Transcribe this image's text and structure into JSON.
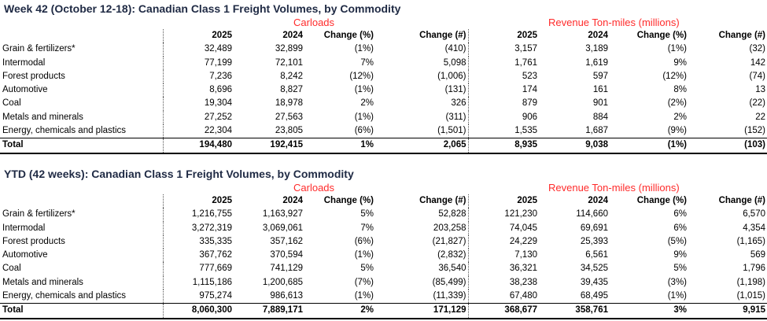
{
  "weekly": {
    "title": "Week 42 (October 12-18): Canadian Class 1 Freight Volumes, by Commodity",
    "carloads_label": "Carloads",
    "revenue_label": "Revenue Ton-miles (millions)",
    "headers": [
      "2025",
      "2024",
      "Change (%)",
      "Change (#)",
      "2025",
      "2024",
      "Change (%)",
      "Change (#)"
    ],
    "rows": [
      {
        "label": "Grain & fertilizers*",
        "values": [
          "32,489",
          "32,899",
          "(1%)",
          "(410)",
          "3,157",
          "3,189",
          "(1%)",
          "(32)"
        ]
      },
      {
        "label": "Intermodal",
        "values": [
          "77,199",
          "72,101",
          "7%",
          "5,098",
          "1,761",
          "1,619",
          "9%",
          "142"
        ]
      },
      {
        "label": "Forest products",
        "values": [
          "7,236",
          "8,242",
          "(12%)",
          "(1,006)",
          "523",
          "597",
          "(12%)",
          "(74)"
        ]
      },
      {
        "label": "Automotive",
        "values": [
          "8,696",
          "8,827",
          "(1%)",
          "(131)",
          "174",
          "161",
          "8%",
          "13"
        ]
      },
      {
        "label": "Coal",
        "values": [
          "19,304",
          "18,978",
          "2%",
          "326",
          "879",
          "901",
          "(2%)",
          "(22)"
        ]
      },
      {
        "label": "Metals and minerals",
        "values": [
          "27,252",
          "27,563",
          "(1%)",
          "(311)",
          "906",
          "884",
          "2%",
          "22"
        ]
      },
      {
        "label": "Energy, chemicals and plastics",
        "values": [
          "22,304",
          "23,805",
          "(6%)",
          "(1,501)",
          "1,535",
          "1,687",
          "(9%)",
          "(152)"
        ]
      }
    ],
    "total": {
      "label": "Total",
      "values": [
        "194,480",
        "192,415",
        "1%",
        "2,065",
        "8,935",
        "9,038",
        "(1%)",
        "(103)"
      ]
    }
  },
  "ytd": {
    "title": "YTD (42 weeks): Canadian Class 1 Freight Volumes, by Commodity",
    "carloads_label": "Carloads",
    "revenue_label": "Revenue Ton-miles (millions)",
    "headers": [
      "2025",
      "2024",
      "Change (%)",
      "Change (#)",
      "2025",
      "2024",
      "Change (%)",
      "Change (#)"
    ],
    "rows": [
      {
        "label": "Grain & fertilizers*",
        "values": [
          "1,216,755",
          "1,163,927",
          "5%",
          "52,828",
          "121,230",
          "114,660",
          "6%",
          "6,570"
        ]
      },
      {
        "label": "Intermodal",
        "values": [
          "3,272,319",
          "3,069,061",
          "7%",
          "203,258",
          "74,045",
          "69,691",
          "6%",
          "4,354"
        ]
      },
      {
        "label": "Forest products",
        "values": [
          "335,335",
          "357,162",
          "(6%)",
          "(21,827)",
          "24,229",
          "25,393",
          "(5%)",
          "(1,165)"
        ]
      },
      {
        "label": "Automotive",
        "values": [
          "367,762",
          "370,594",
          "(1%)",
          "(2,832)",
          "7,130",
          "6,561",
          "9%",
          "569"
        ]
      },
      {
        "label": "Coal",
        "values": [
          "777,669",
          "741,129",
          "5%",
          "36,540",
          "36,321",
          "34,525",
          "5%",
          "1,796"
        ]
      },
      {
        "label": "Metals and minerals",
        "values": [
          "1,115,186",
          "1,200,685",
          "(7%)",
          "(85,499)",
          "38,238",
          "39,435",
          "(3%)",
          "(1,198)"
        ]
      },
      {
        "label": "Energy, chemicals and plastics",
        "values": [
          "975,274",
          "986,613",
          "(1%)",
          "(11,339)",
          "67,480",
          "68,495",
          "(1%)",
          "(1,015)"
        ]
      }
    ],
    "total": {
      "label": "Total",
      "values": [
        "8,060,300",
        "7,889,171",
        "2%",
        "171,129",
        "368,677",
        "358,761",
        "3%",
        "9,915"
      ]
    }
  },
  "colors": {
    "title": "#1f2a44",
    "group_header": "#ff2b2b"
  }
}
